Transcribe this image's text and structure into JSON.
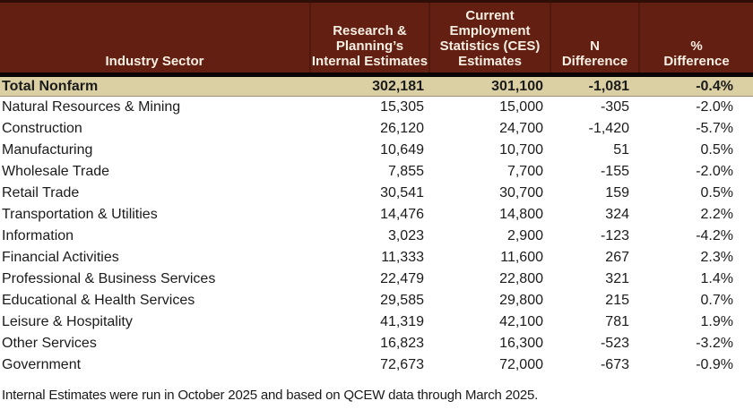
{
  "chart_data": {
    "type": "table",
    "columns": [
      {
        "id": "sector",
        "label": "Industry Sector"
      },
      {
        "id": "internal",
        "label": "Research &\nPlanning’s\nInternal Estimates"
      },
      {
        "id": "ces",
        "label": "Current\nEmployment\nStatistics (CES)\nEstimates"
      },
      {
        "id": "n_diff",
        "label": "N\nDifference"
      },
      {
        "id": "pct_diff",
        "label": "%\nDifference"
      }
    ],
    "rows": [
      {
        "sector": "Total Nonfarm",
        "internal": "302,181",
        "ces": "301,100",
        "n_diff": "-1,081",
        "pct_diff": "-0.4%",
        "emphasis": true
      },
      {
        "sector": "Natural Resources & Mining",
        "internal": "15,305",
        "ces": "15,000",
        "n_diff": "-305",
        "pct_diff": "-2.0%",
        "emphasis": false
      },
      {
        "sector": "Construction",
        "internal": "26,120",
        "ces": "24,700",
        "n_diff": "-1,420",
        "pct_diff": "-5.7%",
        "emphasis": false
      },
      {
        "sector": "Manufacturing",
        "internal": "10,649",
        "ces": "10,700",
        "n_diff": "51",
        "pct_diff": "0.5%",
        "emphasis": false
      },
      {
        "sector": "Wholesale Trade",
        "internal": "7,855",
        "ces": "7,700",
        "n_diff": "-155",
        "pct_diff": "-2.0%",
        "emphasis": false
      },
      {
        "sector": "Retail Trade",
        "internal": "30,541",
        "ces": "30,700",
        "n_diff": "159",
        "pct_diff": "0.5%",
        "emphasis": false
      },
      {
        "sector": "Transportation & Utilities",
        "internal": "14,476",
        "ces": "14,800",
        "n_diff": "324",
        "pct_diff": "2.2%",
        "emphasis": false
      },
      {
        "sector": "Information",
        "internal": "3,023",
        "ces": "2,900",
        "n_diff": "-123",
        "pct_diff": "-4.2%",
        "emphasis": false
      },
      {
        "sector": "Financial Activities",
        "internal": "11,333",
        "ces": "11,600",
        "n_diff": "267",
        "pct_diff": "2.3%",
        "emphasis": false
      },
      {
        "sector": "Professional & Business Services",
        "internal": "22,479",
        "ces": "22,800",
        "n_diff": "321",
        "pct_diff": "1.4%",
        "emphasis": false
      },
      {
        "sector": "Educational & Health Services",
        "internal": "29,585",
        "ces": "29,800",
        "n_diff": "215",
        "pct_diff": "0.7%",
        "emphasis": false
      },
      {
        "sector": "Leisure & Hospitality",
        "internal": "41,319",
        "ces": "42,100",
        "n_diff": "781",
        "pct_diff": "1.9%",
        "emphasis": false
      },
      {
        "sector": "Other Services",
        "internal": "16,823",
        "ces": "16,300",
        "n_diff": "-523",
        "pct_diff": "-3.2%",
        "emphasis": false
      },
      {
        "sector": "Government",
        "internal": "72,673",
        "ces": "72,000",
        "n_diff": "-673",
        "pct_diff": "-0.9%",
        "emphasis": false
      }
    ],
    "footnote": "Internal Estimates were run in October 2025 and based on QCEW data through March 2025.",
    "layout_hints": {
      "grid": false,
      "header_position": "top",
      "total_row_highlighted": true
    }
  },
  "colors": {
    "header_bg": "#641f13",
    "header_text": "#f5efe2",
    "header_top_border": "#2f0e07",
    "separator": "#0a0504",
    "total_row_bg": "#dbd0a4",
    "body_text": "#1b1b1b"
  }
}
